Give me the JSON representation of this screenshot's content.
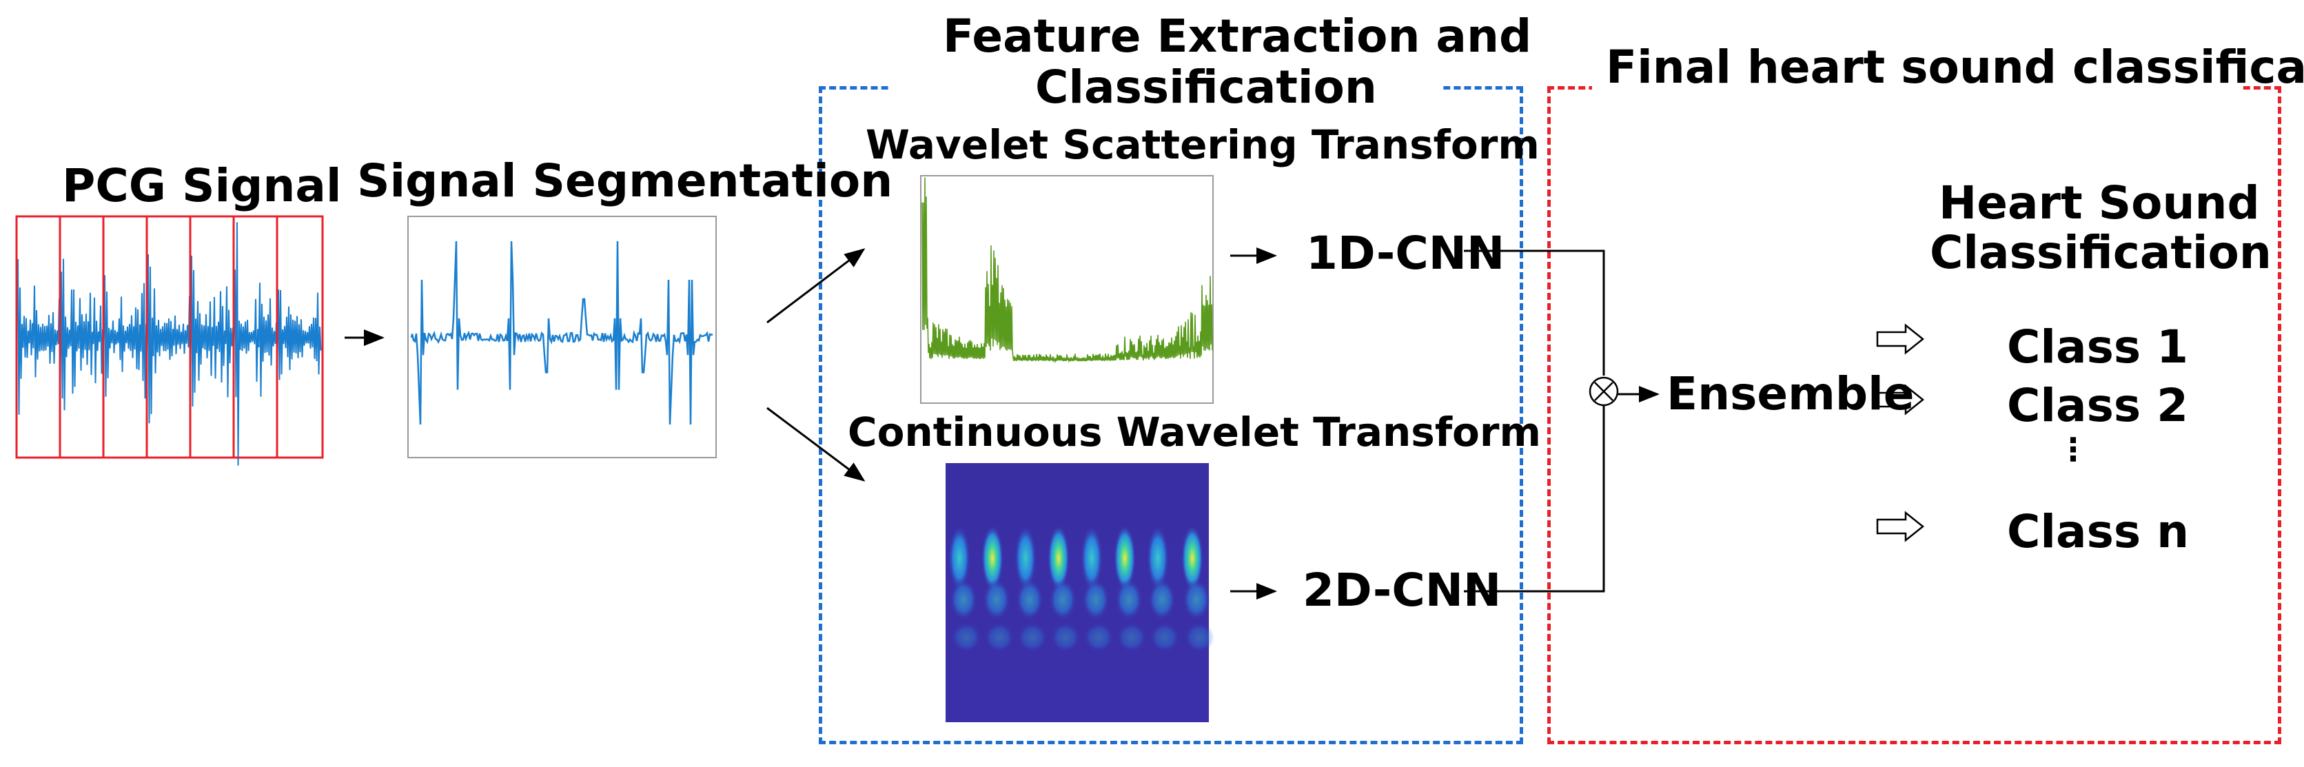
{
  "labels": {
    "pcg_signal": "PCG Signal",
    "signal_segmentation": "Signal Segmentation",
    "feature_title_line1": "Feature Extraction and",
    "feature_title_line2": "Classification",
    "wst": "Wavelet Scattering Transform",
    "cwt": "Continuous Wavelet Transform",
    "cnn1d": "1D-CNN",
    "cnn2d": "2D-CNN",
    "ensemble": "Ensemble",
    "final_title": "Final heart sound classification",
    "hsc_line1": "Heart Sound",
    "hsc_line2": "Classification",
    "ensemble_symbol": "⊗"
  },
  "classes": [
    "Class 1",
    "Class 2",
    "⋮",
    "Class n"
  ],
  "colors": {
    "signal": "#1b7fcf",
    "segment_box": "#e8202a",
    "feature_box": "#1f6fd1",
    "final_box": "#e8202a",
    "scattering": "#5a9a1c",
    "cwt_bg": "#3b2fa6"
  }
}
